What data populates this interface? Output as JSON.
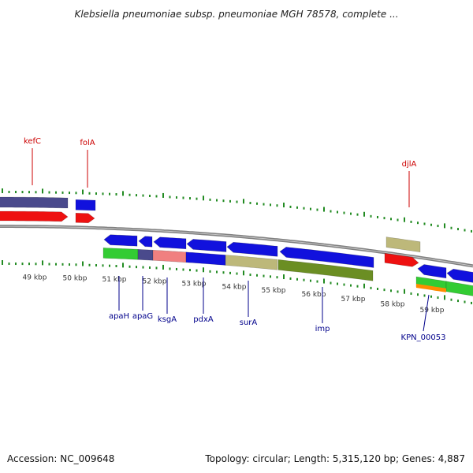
{
  "title": "Klebsiella pneumoniae subsp. pneumoniae MGH 78578, complete ...",
  "footer": {
    "accession": "Accession: NC_009648",
    "stats": "Topology: circular; Length: 5,315,120 bp; Genes: 4,887"
  },
  "colors": {
    "label_forward": "#cc0000",
    "label_reverse": "#00008b",
    "tick_dots": "#228b22",
    "backbone": "#808080",
    "kbp_text": "#333333"
  },
  "kbp_labels": [
    "49 kbp",
    "50 kbp",
    "51 kbp",
    "52 kbp",
    "53 kbp",
    "54 kbp",
    "55 kbp",
    "56 kbp",
    "57 kbp",
    "58 kbp",
    "59 kbp"
  ],
  "gene_labels": {
    "forward": [
      "kefC",
      "folA",
      "djlA"
    ],
    "reverse": [
      "apaH",
      "apaG",
      "ksgA",
      "pdxA",
      "surA",
      "imp",
      "KPN_00053"
    ]
  },
  "features": {
    "forward_genes": [
      "kefC",
      "folA",
      "djlA"
    ],
    "reverse_genes": [
      "apaH",
      "apaG",
      "ksgA",
      "pdxA",
      "surA",
      "imp",
      "KPN_00053"
    ]
  }
}
